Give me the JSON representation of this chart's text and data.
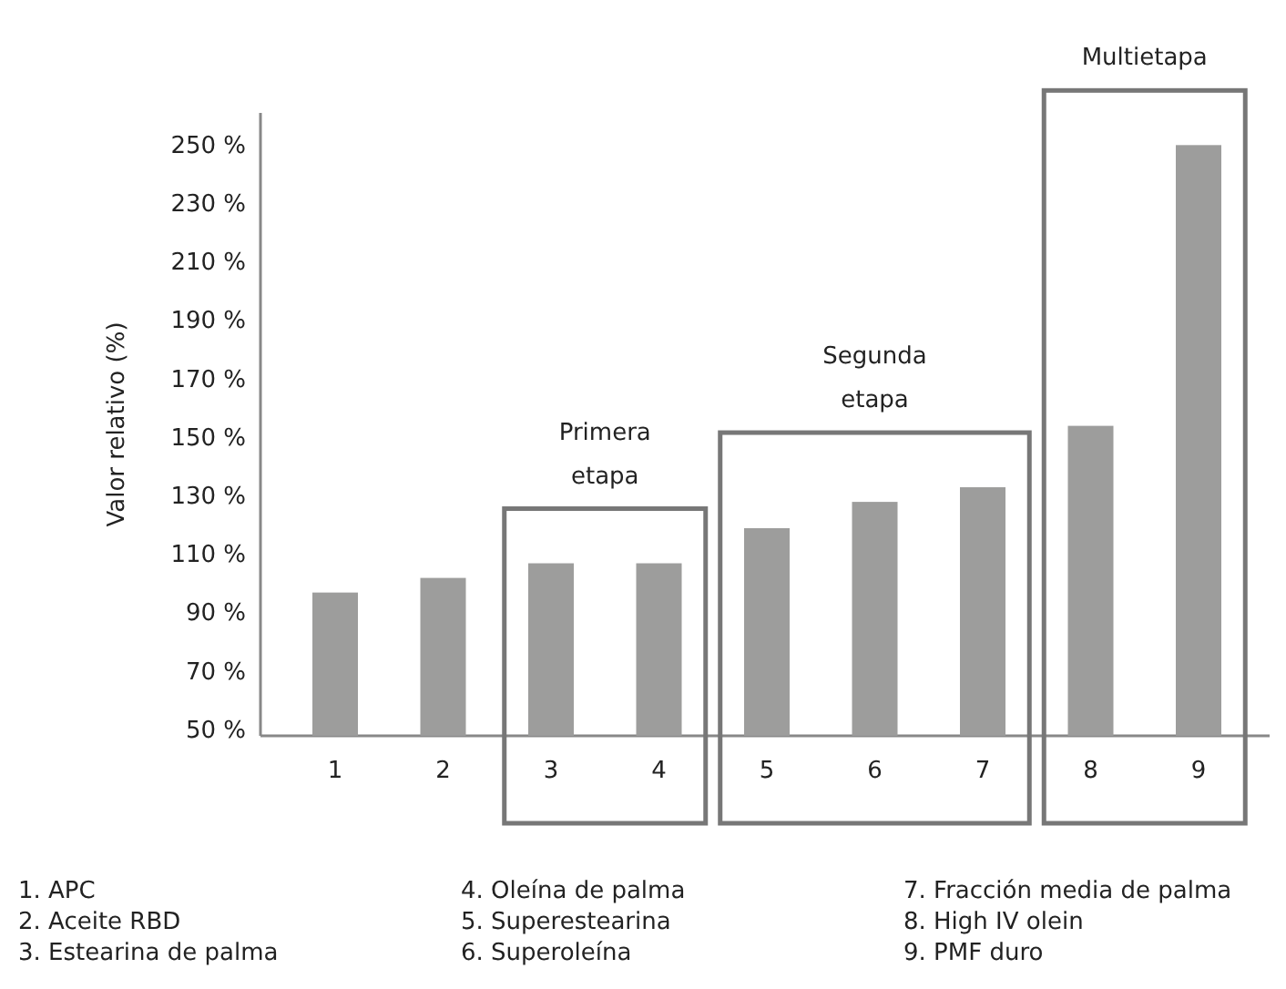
{
  "chart_data": {
    "type": "bar",
    "ylabel": "Valor relativo (%)",
    "categories": [
      "1",
      "2",
      "3",
      "4",
      "5",
      "6",
      "7",
      "8",
      "9"
    ],
    "values": [
      97,
      102,
      107,
      107,
      119,
      128,
      133,
      154,
      250
    ],
    "color": "#9d9d9c",
    "ylim": [
      48,
      261
    ],
    "yticks": [
      {
        "value": 50,
        "label": "50 %"
      },
      {
        "value": 70,
        "label": "70 %"
      },
      {
        "value": 90,
        "label": "90 %"
      },
      {
        "value": 110,
        "label": "110 %"
      },
      {
        "value": 130,
        "label": "130 %"
      },
      {
        "value": 150,
        "label": "150 %"
      },
      {
        "value": 170,
        "label": "170 %"
      },
      {
        "value": 190,
        "label": "190 %"
      },
      {
        "value": 210,
        "label": "210 %"
      },
      {
        "value": 230,
        "label": "230 %"
      },
      {
        "value": 250,
        "label": "250 %"
      }
    ],
    "grid": false,
    "annotations": [
      "Primera etapa",
      "Segunda etapa",
      "Multietapa",
      "1. APC",
      "2. Aceite RBD",
      "3. Estearina de palma",
      "4. Oleína de palma",
      "5. Superestearina",
      "6. Superoleína",
      "7. Fracción media de palma",
      "8. High IV olein",
      "9. PMF duro"
    ]
  }
}
